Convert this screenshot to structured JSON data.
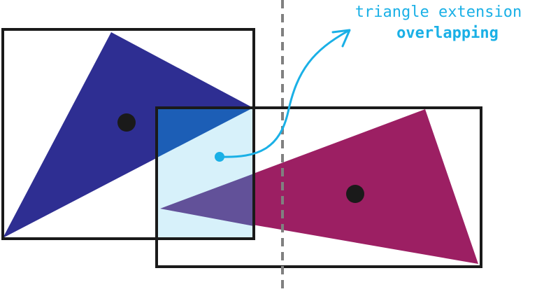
{
  "annotation": {
    "line1": "triangle extension",
    "line2": "overlapping"
  },
  "colors": {
    "background": "#ffffff",
    "box_stroke": "#1a1a1a",
    "divider": "#808080",
    "blue_triangle": "#2e2e92",
    "magenta_triangle": "#9c1f63",
    "purple_overlap": "#625199",
    "overlap_region": "#d7f1fa",
    "overlap_region_border": "#0f93b2",
    "blue_in_overlap": "#1c5eb6",
    "centroid_dot": "#1a1a1a",
    "accent": "#1ab0e6"
  }
}
